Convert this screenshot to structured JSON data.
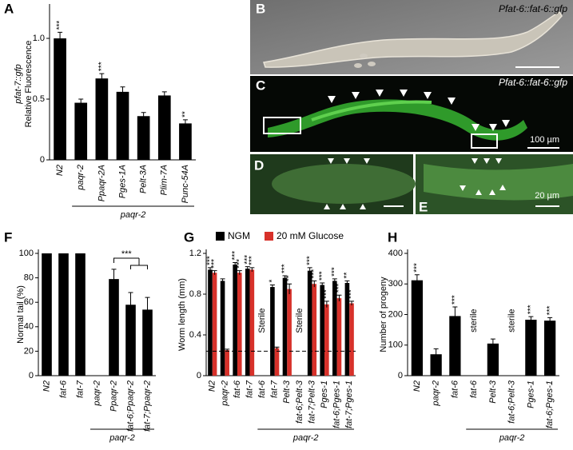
{
  "chart_data": [
    {
      "type": "bar",
      "panel": "A",
      "ylabel": [
        "pfat-7::gfp",
        "Relative Fluorescence"
      ],
      "categories": [
        "N2",
        "paqr-2",
        "Ppaqr-2A",
        "Pges-1A",
        "Pelt-3A",
        "Plim-7A",
        "Punc-54A"
      ],
      "series": [
        {
          "color": "#000000",
          "values": [
            1.0,
            0.47,
            0.67,
            0.56,
            0.36,
            0.53,
            0.3
          ],
          "errors": [
            0.05,
            0.03,
            0.04,
            0.04,
            0.03,
            0.03,
            0.03
          ],
          "sig": [
            "***",
            null,
            "***",
            null,
            null,
            null,
            "**"
          ]
        }
      ],
      "ylim": [
        0,
        1.25
      ],
      "yticks": [
        0,
        0.5,
        {
          "value": 1,
          "label": "1.0"
        }
      ],
      "group_label": "paqr-2"
    },
    {
      "type": "bar",
      "panel": "F",
      "ylabel": [
        "Normal tail (%)"
      ],
      "categories": [
        "N2",
        "fat-6",
        "fat-7",
        "paqr-2",
        "Ppaqr-2",
        "fat-6;Ppaqr-2",
        "fat-7;Ppaqr-2"
      ],
      "series": [
        {
          "color": "#000000",
          "values": [
            100,
            100,
            100,
            0,
            79,
            58,
            54
          ],
          "errors": [
            null,
            null,
            null,
            null,
            8,
            10,
            10
          ],
          "sig": [
            null,
            null,
            null,
            null,
            null,
            null,
            null
          ]
        }
      ],
      "ylim": [
        0,
        100
      ],
      "yticks": [
        0,
        20,
        40,
        60,
        80,
        100
      ],
      "group_label": "paqr-2",
      "bracket_label": "***"
    },
    {
      "type": "bar",
      "panel": "G",
      "ylabel": [
        "Worm length (mm)"
      ],
      "categories": [
        "N2",
        "paqr-2",
        "fat-6",
        "fat-7",
        "fat-6",
        "fat-7",
        "Pelt-3",
        "fat-6;Pelt-3",
        "fat-7;Pelt-3",
        "Pges-1",
        "fat-6;Pges-1",
        "fat-7;Pges-1"
      ],
      "series": [
        {
          "name": "NGM",
          "color": "#000000",
          "values": [
            1.04,
            0.93,
            1.09,
            1.05,
            null,
            0.87,
            0.96,
            null,
            1.03,
            0.89,
            0.93,
            0.91
          ],
          "errors": [
            0.02,
            0.02,
            0.02,
            0.02,
            null,
            0.02,
            0.02,
            null,
            0.03,
            0.02,
            0.02,
            0.02
          ],
          "sig": [
            "***",
            null,
            "***",
            "***",
            null,
            "*",
            "***",
            null,
            "***",
            "***",
            "***",
            "**"
          ]
        },
        {
          "name": "20 mM Glucose",
          "color": "#d7312a",
          "values": [
            1.01,
            0.25,
            1.01,
            1.04,
            null,
            0.27,
            0.85,
            null,
            0.9,
            0.7,
            0.76,
            0.71
          ],
          "errors": [
            0.02,
            0.01,
            0.02,
            0.02,
            null,
            0.01,
            0.05,
            null,
            0.03,
            0.03,
            0.03,
            0.02
          ],
          "sig": [
            "***",
            null,
            "***",
            "***",
            null,
            null,
            "**",
            null,
            "***",
            "***",
            "***",
            "***"
          ]
        }
      ],
      "annotations": [
        null,
        null,
        null,
        null,
        "Sterile",
        null,
        null,
        "Sterile",
        null,
        null,
        null,
        null
      ],
      "reference_line": 0.24,
      "ylim": [
        0,
        1.2
      ],
      "yticks": [
        0,
        0.4,
        0.8,
        1.2
      ],
      "group_label": "paqr-2"
    },
    {
      "type": "bar",
      "panel": "H",
      "ylabel": [
        "Number of progeny"
      ],
      "categories": [
        "N2",
        "paqr-2",
        "fat-6",
        "fat-6",
        "Pelt-3",
        "fat-6;Pelt-3",
        "Pges-1",
        "fat-6;Pges-1"
      ],
      "series": [
        {
          "color": "#000000",
          "values": [
            312,
            70,
            195,
            null,
            105,
            null,
            183,
            180
          ],
          "errors": [
            18,
            18,
            30,
            null,
            15,
            null,
            10,
            10
          ],
          "sig": [
            "***",
            null,
            "***",
            null,
            null,
            null,
            "***",
            "***"
          ]
        }
      ],
      "annotations": [
        null,
        null,
        null,
        "sterile",
        null,
        "sterile",
        null,
        null
      ],
      "ylim": [
        0,
        400
      ],
      "yticks": [
        0,
        100,
        200,
        300,
        400
      ],
      "group_label": "paqr-2"
    }
  ],
  "images": [
    {
      "panel": "B",
      "caption": "Pfat-6::fat-6::gfp"
    },
    {
      "panel": "C",
      "caption": "Pfat-6::fat-6::gfp",
      "scale": "100 µm"
    },
    {
      "panel": "D"
    },
    {
      "panel": "E",
      "scale": "20 µm"
    }
  ]
}
